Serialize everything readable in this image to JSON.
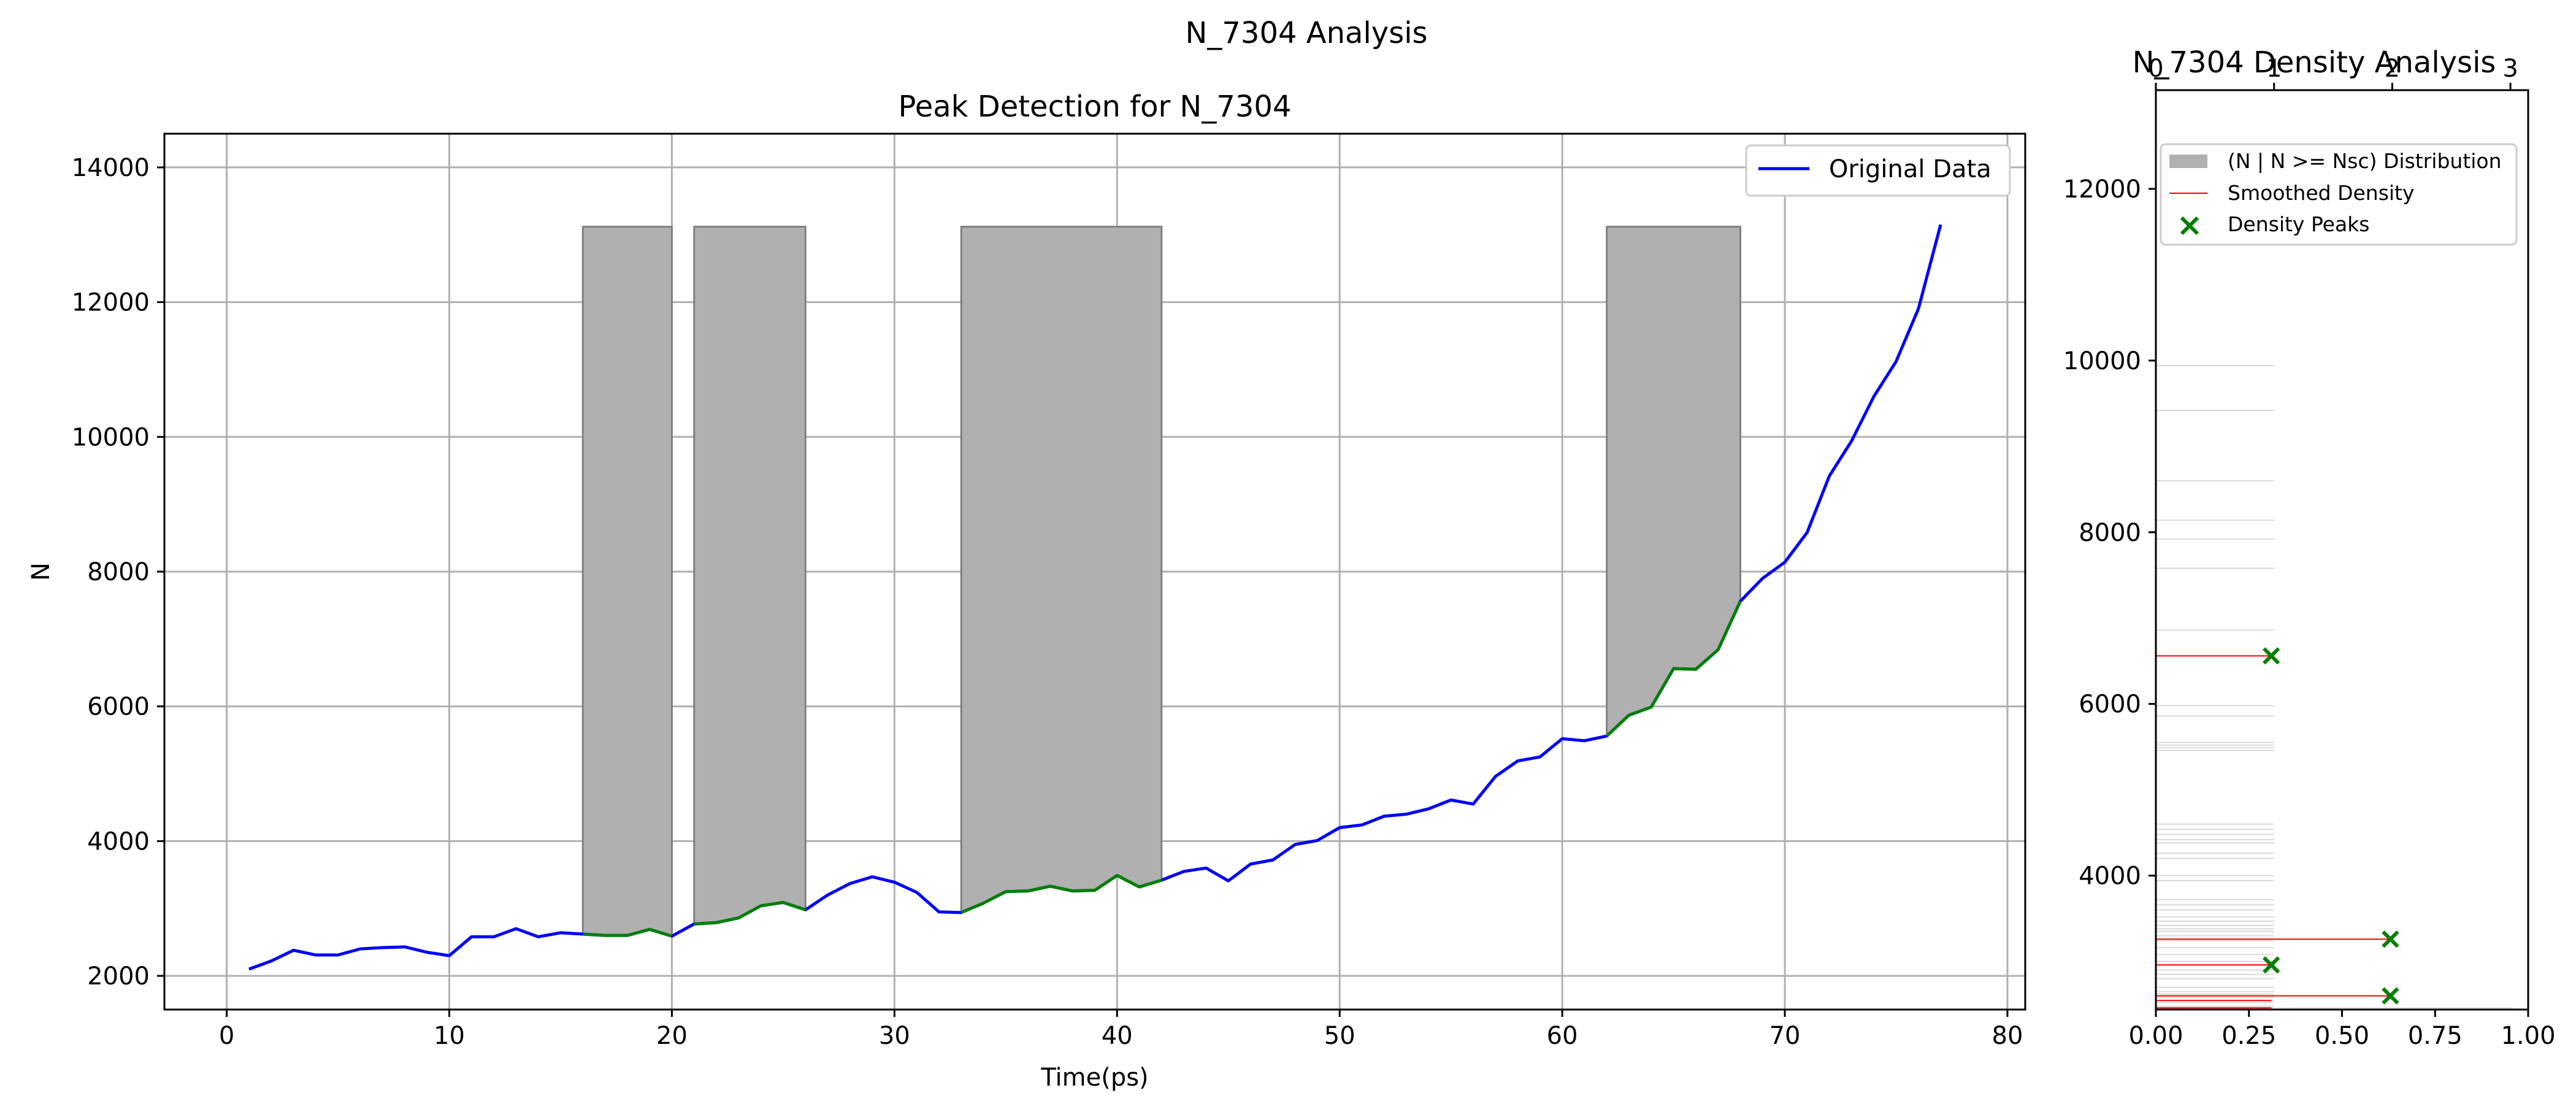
{
  "figure": {
    "suptitle": "N_7304 Analysis"
  },
  "chart_data": [
    {
      "type": "line",
      "title": "Peak Detection for N_7304",
      "xlabel": "Time(ps)",
      "ylabel": "N",
      "xlim": [
        -2.8,
        80.8
      ],
      "ylim": [
        1500,
        14500
      ],
      "xticks": [
        0,
        10,
        20,
        30,
        40,
        50,
        60,
        70,
        80
      ],
      "yticks": [
        2000,
        4000,
        6000,
        8000,
        10000,
        12000,
        14000
      ],
      "grid": true,
      "legend_position": "top-right",
      "series": [
        {
          "name": "Original Data",
          "color": "#0000ff",
          "x": [
            1,
            2,
            3,
            4,
            5,
            6,
            7,
            8,
            9,
            10,
            11,
            12,
            13,
            14,
            15,
            16,
            17,
            18,
            19,
            20,
            21,
            22,
            23,
            24,
            25,
            26,
            27,
            28,
            29,
            30,
            31,
            32,
            33,
            34,
            35,
            36,
            37,
            38,
            39,
            40,
            41,
            42,
            43,
            44,
            45,
            46,
            47,
            48,
            49,
            50,
            51,
            52,
            53,
            54,
            55,
            56,
            57,
            58,
            59,
            60,
            61,
            62,
            63,
            64,
            65,
            66,
            67,
            68,
            69,
            70,
            71,
            72,
            73,
            74,
            75,
            76,
            77
          ],
          "y": [
            2100,
            2220,
            2380,
            2310,
            2310,
            2400,
            2420,
            2430,
            2350,
            2300,
            2580,
            2580,
            2700,
            2580,
            2640,
            2620,
            2600,
            2600,
            2690,
            2590,
            2770,
            2790,
            2860,
            3040,
            3090,
            2980,
            3200,
            3370,
            3470,
            3390,
            3240,
            2950,
            2940,
            3080,
            3250,
            3260,
            3330,
            3260,
            3270,
            3490,
            3320,
            3420,
            3550,
            3600,
            3410,
            3660,
            3720,
            3950,
            4010,
            4200,
            4240,
            4370,
            4400,
            4480,
            4610,
            4550,
            4960,
            5190,
            5250,
            5520,
            5490,
            5560,
            5870,
            5990,
            6560,
            6550,
            6840,
            7560,
            7900,
            8140,
            8580,
            9420,
            9940,
            10600,
            11120,
            11900,
            13150
          ]
        }
      ],
      "highlight_segments": {
        "color": "#008000",
        "ranges": [
          [
            16,
            20
          ],
          [
            21,
            26
          ],
          [
            33,
            42
          ],
          [
            62,
            68
          ]
        ]
      },
      "shaded_regions": {
        "color": "#b0b0b0",
        "top": 13120,
        "ranges": [
          [
            16,
            20
          ],
          [
            21,
            26
          ],
          [
            33,
            42
          ],
          [
            62,
            68
          ]
        ]
      }
    },
    {
      "type": "bar",
      "orientation": "horizontal",
      "title": "N_7304 Density Analysis",
      "xlim": [
        0,
        1
      ],
      "xticks": [
        "0.00",
        "0.25",
        "0.50",
        "0.75",
        "1.00"
      ],
      "top_xlim": [
        0,
        3.15
      ],
      "top_xticks": [
        "0",
        "1",
        "2",
        "3"
      ],
      "ylim": [
        2440,
        13150
      ],
      "yticks": [
        4000,
        6000,
        8000,
        10000,
        12000
      ],
      "legend_position": "top-left",
      "legend": [
        {
          "label": "(N | N >= Nsc) Distribution",
          "kind": "patch",
          "color": "#b0b0b0"
        },
        {
          "label": "Smoothed Density",
          "kind": "line",
          "color": "#ff0000"
        },
        {
          "label": "Density Peaks",
          "kind": "marker",
          "color": "#008000"
        }
      ],
      "distribution_lines": [
        2480,
        2520,
        2545,
        2580,
        2620,
        2650,
        2700,
        2800,
        2850,
        2900,
        2960,
        3000,
        3080,
        3160,
        3240,
        3260,
        3300,
        3350,
        3380,
        3420,
        3470,
        3520,
        3600,
        3660,
        3720,
        3940,
        4000,
        4200,
        4260,
        4380,
        4420,
        4480,
        4540,
        4600,
        5460,
        5490,
        5520,
        5550,
        5860,
        5980,
        6560,
        6860,
        7580,
        7920,
        8140,
        8600,
        9420,
        9940
      ],
      "distribution_value": 1,
      "smoothed_density": [
        {
          "y": 2460,
          "value": 0.31
        },
        {
          "y": 2545,
          "value": 0.31
        },
        {
          "y": 2600,
          "value": 0.63
        },
        {
          "y": 2960,
          "value": 0.31
        },
        {
          "y": 3260,
          "value": 0.63
        },
        {
          "y": 6560,
          "value": 0.31
        }
      ],
      "density_peaks": [
        {
          "y": 2600,
          "value": 0.63
        },
        {
          "y": 2960,
          "value": 0.31
        },
        {
          "y": 3260,
          "value": 0.63
        },
        {
          "y": 6560,
          "value": 0.31
        }
      ]
    }
  ]
}
